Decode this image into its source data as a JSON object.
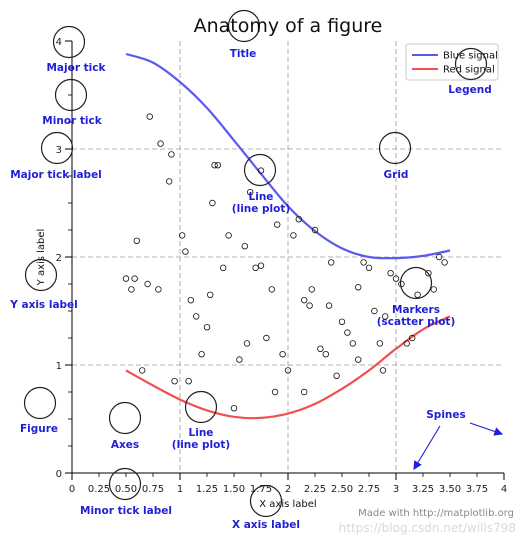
{
  "chart_data": {
    "type": "line",
    "title": "Anatomy of a figure",
    "xlabel": "X axis label",
    "ylabel": "Y axis label",
    "xlim": [
      0,
      4
    ],
    "ylim": [
      0,
      4
    ],
    "grid": true,
    "legend_position": "top-right",
    "x_major_ticks": [
      0,
      1,
      2,
      3,
      4
    ],
    "x_minor_ticks": [
      0.25,
      0.5,
      0.75,
      1.25,
      1.5,
      1.75,
      2.25,
      2.5,
      2.75,
      3.25,
      3.5,
      3.75
    ],
    "x_tick_labels": [
      "0",
      "0.25",
      "0.50",
      "0.75",
      "1",
      "1.25",
      "1.50",
      "1.75",
      "2",
      "2.25",
      "2.50",
      "2.75",
      "3",
      "3.25",
      "3.50",
      "3.75",
      "4"
    ],
    "y_major_ticks": [
      0,
      1,
      2,
      3,
      4
    ],
    "y_tick_labels": [
      "0",
      "1",
      "2",
      "3",
      "4"
    ],
    "series": [
      {
        "name": "Blue signal",
        "color": "#5a5af0",
        "x": [
          0.5,
          0.75,
          1.0,
          1.25,
          1.5,
          1.75,
          2.0,
          2.25,
          2.5,
          2.75,
          3.0,
          3.25,
          3.5
        ],
        "y": [
          3.88,
          3.8,
          3.62,
          3.38,
          3.08,
          2.77,
          2.47,
          2.24,
          2.08,
          2.0,
          1.99,
          2.01,
          2.06
        ]
      },
      {
        "name": "Red signal",
        "color": "#f05050",
        "x": [
          0.5,
          0.75,
          1.0,
          1.25,
          1.5,
          1.75,
          2.0,
          2.25,
          2.5,
          2.75,
          3.0,
          3.25,
          3.5
        ],
        "y": [
          0.95,
          0.81,
          0.68,
          0.58,
          0.52,
          0.51,
          0.55,
          0.64,
          0.78,
          0.95,
          1.15,
          1.33,
          1.45
        ]
      }
    ],
    "scatter": {
      "marker": "circle-open",
      "x": [
        0.5,
        0.55,
        0.6,
        0.7,
        0.72,
        0.8,
        0.82,
        0.9,
        0.92,
        0.95,
        1.05,
        1.1,
        1.15,
        1.2,
        1.25,
        1.3,
        1.32,
        1.35,
        1.4,
        1.45,
        1.5,
        1.55,
        1.6,
        1.65,
        1.7,
        1.75,
        1.8,
        1.85,
        1.9,
        1.95,
        2.0,
        2.05,
        2.1,
        2.15,
        2.2,
        2.25,
        2.3,
        2.35,
        2.4,
        2.45,
        2.5,
        2.55,
        2.6,
        2.65,
        2.7,
        2.75,
        2.8,
        2.85,
        2.9,
        2.95,
        3.0,
        3.05,
        3.1,
        3.2,
        3.3,
        3.4,
        3.45,
        0.58,
        1.08,
        1.75,
        2.15,
        2.65,
        3.15,
        0.65,
        1.28,
        1.88,
        2.38,
        2.88,
        3.35,
        1.02,
        1.62,
        2.22
      ],
      "y": [
        1.8,
        1.7,
        2.15,
        1.75,
        3.3,
        1.7,
        3.05,
        2.7,
        2.95,
        0.85,
        2.05,
        1.6,
        1.45,
        1.1,
        1.35,
        2.5,
        2.85,
        2.85,
        1.9,
        2.2,
        0.6,
        1.05,
        2.1,
        2.6,
        1.9,
        2.8,
        1.25,
        1.7,
        2.3,
        1.1,
        0.95,
        2.2,
        2.35,
        0.75,
        1.55,
        2.25,
        1.15,
        1.1,
        1.95,
        0.9,
        1.4,
        1.3,
        1.2,
        1.05,
        1.95,
        1.9,
        1.5,
        1.2,
        1.45,
        1.85,
        1.8,
        1.75,
        1.2,
        1.65,
        1.85,
        2.0,
        1.95,
        1.8,
        0.85,
        1.92,
        1.6,
        1.72,
        1.25,
        0.95,
        1.65,
        0.75,
        1.55,
        0.95,
        1.7,
        2.2,
        1.2,
        1.7
      ]
    }
  },
  "annotations": [
    {
      "name": "major-tick-annotation",
      "label": "Major tick"
    },
    {
      "name": "minor-tick-annotation",
      "label": "Minor tick"
    },
    {
      "name": "major-tick-label-annotation",
      "label": "Major tick label"
    },
    {
      "name": "y-axis-label-annotation",
      "label": "Y axis label"
    },
    {
      "name": "figure-annotation",
      "label": "Figure"
    },
    {
      "name": "axes-annotation",
      "label": "Axes"
    },
    {
      "name": "line-lower-annotation",
      "label": "Line\n(line plot)"
    },
    {
      "name": "line-upper-annotation",
      "label": "Line\n(line plot)"
    },
    {
      "name": "title-annotation",
      "label": "Title"
    },
    {
      "name": "legend-annotation",
      "label": "Legend"
    },
    {
      "name": "grid-annotation",
      "label": "Grid"
    },
    {
      "name": "markers-annotation",
      "label": "Markers\n(scatter plot)"
    },
    {
      "name": "spines-annotation",
      "label": "Spines"
    },
    {
      "name": "minor-tick-label-annotation",
      "label": "Minor tick label"
    },
    {
      "name": "x-axis-label-annotation",
      "label": "X axis label"
    }
  ],
  "credit": "Made with http://matplotlib.org",
  "watermark": "https://blog.csdn.net/wills798",
  "colors": {
    "annotation_text": "#1f1fd6",
    "grid": "#9a9a9a",
    "blue_line": "#5a5af0",
    "red_line": "#f05050"
  }
}
